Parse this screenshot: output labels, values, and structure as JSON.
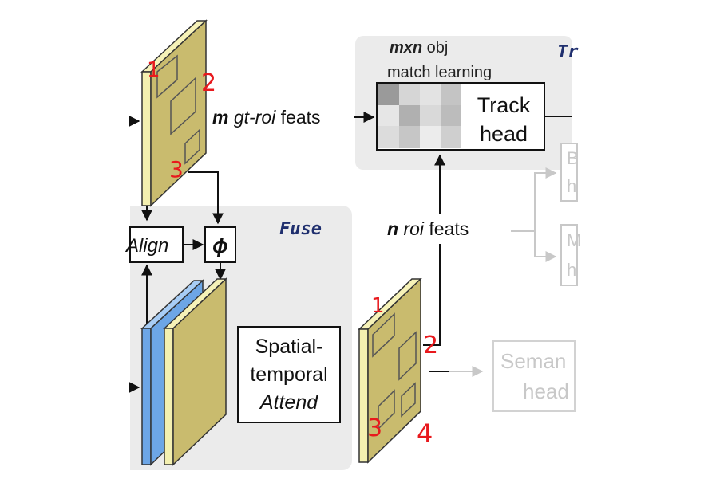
{
  "labels": {
    "track_title_partial": "Tr",
    "match_learning_line1_bold": "mxn",
    "match_learning_line1_rest": " obj",
    "match_learning_line2": "match learning",
    "track_head_line1": "Track",
    "track_head_line2": "head",
    "gt_roi_feats_m": "m",
    "gt_roi_feats_rest": " gt-roi",
    "gt_roi_feats_end": " feats",
    "n_roi_feats_n": "n",
    "n_roi_feats_roi": " roi",
    "n_roi_feats_end": " feats",
    "fuse_title": "Fuse",
    "align_label": "Align",
    "phi_label": "ϕ",
    "spatial_line1": "Spatial-",
    "spatial_line2": "temporal",
    "spatial_line3": "Attend",
    "semantic_line1": "Seman",
    "semantic_line2": "head",
    "faded_box1_line1": "B",
    "faded_box1_line2": "h",
    "faded_box2_line1": "M",
    "faded_box2_line2": "h"
  },
  "annotations": {
    "top_map": [
      "1",
      "2",
      "3"
    ],
    "bottom_map": [
      "1",
      "2",
      "3",
      "4"
    ]
  },
  "colors": {
    "fuse_bg": "#ebebeb",
    "track_bg": "#ebebeb",
    "feature_map_face": "#c9bb6e",
    "feature_map_side": "#f4f0b0",
    "blue_map_face": "#6da6e6",
    "annotation_red": "#e8191d",
    "faded": "#c8c8c8"
  }
}
